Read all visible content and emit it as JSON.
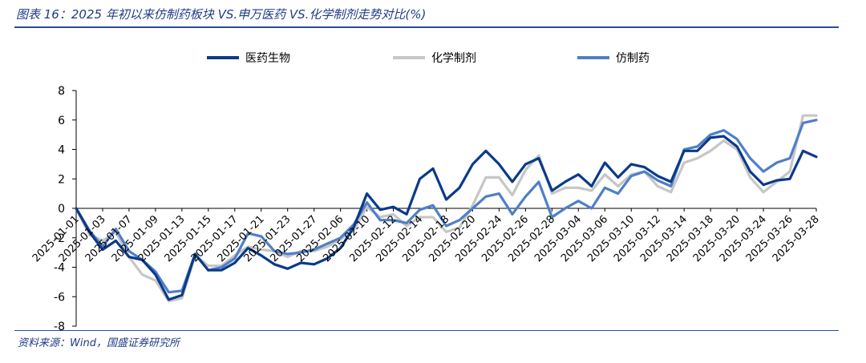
{
  "title": "图表 16：2025 年初以来仿制药板块 VS.申万医药 VS.化学制剂走势对比(%)",
  "source": "资料来源：Wind，国盛证券研究所",
  "chart_data": {
    "type": "line",
    "title": "图表 16：2025 年初以来仿制药板块 VS.申万医药 VS.化学制剂走势对比(%)",
    "ylim": [
      -8,
      8
    ],
    "yticks": [
      -8,
      -6,
      -4,
      -2,
      0,
      2,
      4,
      6,
      8
    ],
    "legend_position": "top",
    "tick_labels": [
      "2025-01-01",
      "2025-01-03",
      "2025-01-07",
      "2025-01-09",
      "2025-01-13",
      "2025-01-15",
      "2025-01-17",
      "2025-01-21",
      "2025-01-23",
      "2025-01-27",
      "2025-02-06",
      "2025-02-10",
      "2025-02-12",
      "2025-02-14",
      "2025-02-18",
      "2025-02-20",
      "2025-02-24",
      "2025-02-26",
      "2025-02-28",
      "2025-03-04",
      "2025-03-06",
      "2025-03-10",
      "2025-03-12",
      "2025-03-14",
      "2025-03-18",
      "2025-03-20",
      "2025-03-24",
      "2025-03-26",
      "2025-03-28"
    ],
    "tick_indices": [
      0,
      2,
      4,
      6,
      8,
      10,
      12,
      14,
      16,
      18,
      20,
      22,
      24,
      26,
      28,
      30,
      32,
      34,
      36,
      38,
      40,
      42,
      44,
      46,
      48,
      50,
      52,
      54,
      56
    ],
    "series": [
      {
        "name": "医药生物",
        "color": "#0b3a8a",
        "width": 3.2,
        "values": [
          0.0,
          -1.6,
          -2.8,
          -2.2,
          -3.3,
          -3.5,
          -4.5,
          -6.2,
          -5.9,
          -3.1,
          -4.2,
          -4.2,
          -3.7,
          -2.7,
          -3.2,
          -3.8,
          -4.1,
          -3.7,
          -3.8,
          -3.4,
          -2.7,
          -1.3,
          1.0,
          -0.1,
          0.1,
          -0.4,
          2.0,
          2.7,
          0.6,
          1.4,
          3.0,
          3.9,
          3.0,
          1.8,
          3.0,
          3.4,
          1.2,
          1.8,
          2.3,
          1.5,
          3.1,
          2.1,
          3.0,
          2.8,
          2.2,
          1.8,
          3.9,
          3.9,
          4.8,
          4.9,
          4.2,
          2.5,
          1.6,
          1.9,
          2.0,
          3.9,
          3.5
        ]
      },
      {
        "name": "化学制剂",
        "color": "#c6c6c6",
        "width": 3.2,
        "values": [
          0.0,
          -1.8,
          -2.2,
          -1.6,
          -3.3,
          -4.5,
          -4.9,
          -6.3,
          -6.1,
          -3.2,
          -3.9,
          -3.9,
          -3.2,
          -2.6,
          -2.8,
          -2.9,
          -3.3,
          -2.9,
          -2.9,
          -2.6,
          -2.1,
          -1.5,
          0.1,
          -0.6,
          -0.4,
          -1.2,
          -0.6,
          -0.6,
          -1.6,
          -1.3,
          0.2,
          2.1,
          2.1,
          0.9,
          2.6,
          3.6,
          1.0,
          1.4,
          1.4,
          1.2,
          2.3,
          1.5,
          2.3,
          2.5,
          1.5,
          1.1,
          3.1,
          3.4,
          3.9,
          4.6,
          4.0,
          2.1,
          1.1,
          1.8,
          2.5,
          6.3,
          6.3
        ]
      },
      {
        "name": "仿制药",
        "color": "#4f7fc7",
        "width": 3.2,
        "values": [
          0.0,
          -1.5,
          -2.6,
          -1.4,
          -2.9,
          -3.5,
          -4.3,
          -5.7,
          -5.6,
          -3.1,
          -4.2,
          -4.0,
          -3.4,
          -1.7,
          -1.9,
          -2.9,
          -3.1,
          -3.0,
          -2.8,
          -2.4,
          -2.0,
          -1.1,
          0.4,
          -0.8,
          -0.8,
          -1.0,
          -0.1,
          0.2,
          -1.2,
          -0.8,
          0.0,
          0.8,
          1.0,
          -0.4,
          0.8,
          1.8,
          -0.6,
          0.0,
          0.5,
          0.0,
          1.4,
          1.0,
          2.2,
          2.5,
          1.9,
          1.5,
          4.0,
          4.2,
          5.0,
          5.3,
          4.7,
          3.4,
          2.5,
          3.1,
          3.4,
          5.8,
          6.0
        ]
      }
    ]
  }
}
